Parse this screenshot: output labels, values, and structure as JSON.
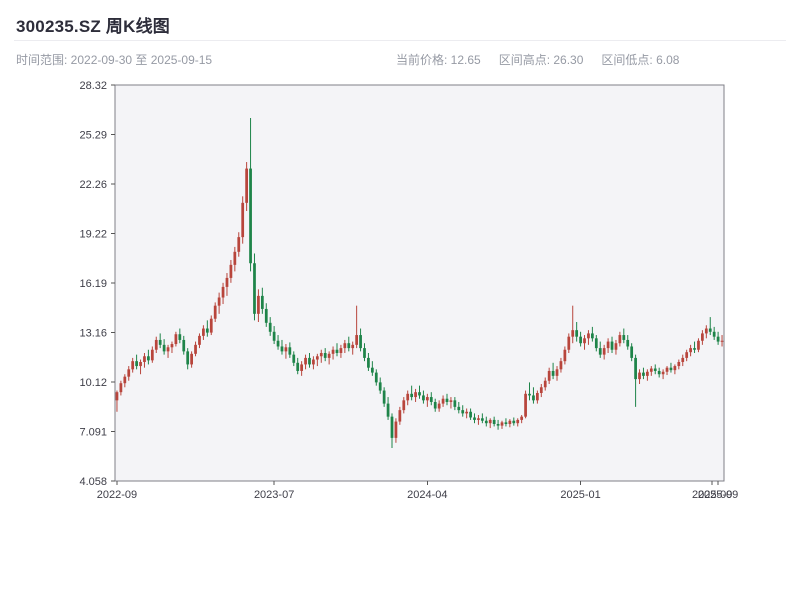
{
  "header": {
    "title": "300235.SZ 周K线图",
    "subtitle_left": "时间范围: 2022-09-30 至 2025-09-15",
    "stats": [
      {
        "text": "当前价格: 12.65"
      },
      {
        "text": "区间高点: 26.30"
      },
      {
        "text": "区间低点: 6.08"
      }
    ]
  },
  "chart_data": {
    "type": "candlestick",
    "title": "300235.SZ 周K线图",
    "symbol": "300235.SZ",
    "interval": "weekly",
    "date_range_start": "2022-09-30",
    "date_range_end": "2025-09-15",
    "current_price": 12.65,
    "range_high": 26.3,
    "range_low": 6.08,
    "ylim": [
      4.058,
      28.32
    ],
    "y_ticks": [
      "28.32",
      "25.29",
      "22.26",
      "19.22",
      "16.19",
      "13.16",
      "10.12",
      "7.091",
      "4.058"
    ],
    "x_ticks": [
      {
        "label": "2022-09",
        "index": 0
      },
      {
        "label": "2023-07",
        "index": 40
      },
      {
        "label": "2024-04",
        "index": 79
      },
      {
        "label": "2025-01",
        "index": 118
      },
      {
        "label": "2025-09",
        "index": 151.5
      },
      {
        "label": "2025-09",
        "index": 153
      }
    ],
    "up_color": "#b8453c",
    "down_color": "#1e8449",
    "plot_bg": "#f4f4f7",
    "border_color": "#7f7f87",
    "tick_color": "#555555",
    "label_color": "#3e3e48",
    "candles": [
      [
        9.0,
        9.6,
        8.3,
        9.5
      ],
      [
        9.5,
        10.2,
        9.3,
        10.05
      ],
      [
        10.05,
        10.6,
        9.8,
        10.45
      ],
      [
        10.45,
        11.1,
        10.2,
        10.9
      ],
      [
        10.9,
        11.6,
        10.7,
        11.4
      ],
      [
        11.4,
        11.8,
        10.9,
        11.1
      ],
      [
        11.1,
        11.5,
        10.6,
        11.35
      ],
      [
        11.35,
        11.9,
        11.0,
        11.7
      ],
      [
        11.7,
        12.1,
        11.2,
        11.45
      ],
      [
        11.45,
        12.3,
        11.3,
        12.1
      ],
      [
        12.1,
        12.9,
        11.9,
        12.7
      ],
      [
        12.7,
        13.1,
        12.2,
        12.4
      ],
      [
        12.4,
        12.75,
        11.8,
        12.0
      ],
      [
        12.0,
        12.4,
        11.6,
        12.25
      ],
      [
        12.25,
        12.6,
        11.9,
        12.45
      ],
      [
        12.45,
        13.2,
        12.3,
        13.05
      ],
      [
        13.05,
        13.4,
        12.5,
        12.7
      ],
      [
        12.7,
        12.95,
        11.8,
        12.0
      ],
      [
        12.0,
        12.2,
        10.9,
        11.2
      ],
      [
        11.2,
        12.0,
        11.0,
        11.85
      ],
      [
        11.85,
        12.6,
        11.7,
        12.4
      ],
      [
        12.4,
        13.1,
        12.2,
        12.95
      ],
      [
        12.95,
        13.6,
        12.7,
        13.4
      ],
      [
        13.4,
        13.9,
        12.9,
        13.15
      ],
      [
        13.15,
        14.2,
        13.0,
        14.0
      ],
      [
        14.0,
        15.0,
        13.8,
        14.8
      ],
      [
        14.8,
        15.6,
        14.3,
        15.3
      ],
      [
        15.3,
        16.2,
        14.9,
        15.95
      ],
      [
        15.95,
        16.8,
        15.4,
        16.5
      ],
      [
        16.5,
        17.6,
        16.2,
        17.3
      ],
      [
        17.3,
        18.4,
        16.9,
        18.1
      ],
      [
        18.1,
        19.3,
        17.8,
        19.0
      ],
      [
        19.0,
        21.5,
        18.6,
        21.1
      ],
      [
        21.1,
        23.6,
        20.6,
        23.2
      ],
      [
        23.2,
        26.3,
        16.9,
        17.4
      ],
      [
        17.4,
        18.0,
        13.9,
        14.3
      ],
      [
        14.3,
        15.8,
        13.8,
        15.4
      ],
      [
        15.4,
        15.9,
        14.3,
        14.6
      ],
      [
        14.6,
        14.95,
        13.5,
        13.75
      ],
      [
        13.75,
        14.1,
        12.95,
        13.2
      ],
      [
        13.2,
        13.55,
        12.45,
        12.65
      ],
      [
        12.65,
        13.0,
        12.1,
        12.3
      ],
      [
        12.3,
        12.7,
        11.8,
        12.0
      ],
      [
        12.0,
        12.45,
        11.55,
        12.25
      ],
      [
        12.25,
        12.55,
        11.6,
        11.8
      ],
      [
        11.8,
        12.0,
        11.1,
        11.3
      ],
      [
        11.3,
        11.6,
        10.6,
        10.8
      ],
      [
        10.8,
        11.4,
        10.5,
        11.2
      ],
      [
        11.2,
        11.8,
        10.9,
        11.6
      ],
      [
        11.6,
        11.9,
        11.0,
        11.2
      ],
      [
        11.2,
        11.7,
        10.9,
        11.5
      ],
      [
        11.5,
        11.85,
        11.1,
        11.7
      ],
      [
        11.7,
        12.1,
        11.3,
        11.9
      ],
      [
        11.9,
        12.2,
        11.4,
        11.6
      ],
      [
        11.6,
        12.0,
        11.2,
        11.85
      ],
      [
        11.85,
        12.3,
        11.5,
        12.1
      ],
      [
        12.1,
        12.5,
        11.7,
        11.9
      ],
      [
        11.9,
        12.4,
        11.6,
        12.2
      ],
      [
        12.2,
        12.7,
        11.9,
        12.5
      ],
      [
        12.5,
        12.9,
        12.0,
        12.2
      ],
      [
        12.2,
        12.6,
        11.8,
        12.4
      ],
      [
        12.4,
        14.8,
        12.2,
        13.0
      ],
      [
        13.0,
        13.4,
        12.0,
        12.2
      ],
      [
        12.2,
        12.5,
        11.4,
        11.6
      ],
      [
        11.6,
        11.9,
        10.8,
        11.0
      ],
      [
        11.0,
        11.4,
        10.5,
        10.7
      ],
      [
        10.7,
        10.9,
        9.9,
        10.1
      ],
      [
        10.1,
        10.4,
        9.4,
        9.6
      ],
      [
        9.6,
        9.8,
        8.6,
        8.8
      ],
      [
        8.8,
        9.2,
        7.8,
        8.0
      ],
      [
        8.0,
        8.2,
        6.08,
        6.7
      ],
      [
        6.7,
        7.9,
        6.4,
        7.7
      ],
      [
        7.7,
        8.6,
        7.5,
        8.4
      ],
      [
        8.4,
        9.2,
        8.2,
        9.0
      ],
      [
        9.0,
        9.6,
        8.7,
        9.4
      ],
      [
        9.4,
        9.9,
        9.0,
        9.2
      ],
      [
        9.2,
        9.7,
        8.9,
        9.5
      ],
      [
        9.5,
        9.9,
        9.1,
        9.3
      ],
      [
        9.3,
        9.6,
        8.8,
        9.0
      ],
      [
        9.0,
        9.4,
        8.6,
        9.2
      ],
      [
        9.2,
        9.5,
        8.7,
        8.9
      ],
      [
        8.9,
        9.1,
        8.3,
        8.5
      ],
      [
        8.5,
        9.0,
        8.3,
        8.8
      ],
      [
        8.8,
        9.3,
        8.6,
        9.1
      ],
      [
        9.1,
        9.4,
        8.7,
        8.9
      ],
      [
        8.9,
        9.2,
        8.5,
        9.0
      ],
      [
        9.0,
        9.2,
        8.4,
        8.6
      ],
      [
        8.6,
        8.9,
        8.2,
        8.4
      ],
      [
        8.4,
        8.7,
        8.0,
        8.2
      ],
      [
        8.2,
        8.5,
        7.9,
        8.3
      ],
      [
        8.3,
        8.5,
        7.8,
        7.95
      ],
      [
        7.95,
        8.2,
        7.6,
        7.8
      ],
      [
        7.8,
        8.1,
        7.5,
        7.9
      ],
      [
        7.9,
        8.2,
        7.6,
        7.75
      ],
      [
        7.75,
        8.0,
        7.4,
        7.6
      ],
      [
        7.6,
        7.9,
        7.3,
        7.8
      ],
      [
        7.8,
        8.0,
        7.4,
        7.55
      ],
      [
        7.55,
        7.8,
        7.2,
        7.45
      ],
      [
        7.45,
        7.75,
        7.25,
        7.65
      ],
      [
        7.65,
        7.9,
        7.4,
        7.55
      ],
      [
        7.55,
        7.85,
        7.35,
        7.75
      ],
      [
        7.75,
        7.95,
        7.45,
        7.6
      ],
      [
        7.6,
        7.9,
        7.4,
        7.8
      ],
      [
        7.8,
        8.1,
        7.6,
        8.0
      ],
      [
        8.0,
        9.6,
        7.9,
        9.4
      ],
      [
        9.4,
        10.1,
        9.0,
        9.3
      ],
      [
        9.3,
        9.8,
        8.8,
        9.0
      ],
      [
        9.0,
        9.6,
        8.8,
        9.45
      ],
      [
        9.45,
        10.0,
        9.2,
        9.8
      ],
      [
        9.8,
        10.4,
        9.6,
        10.2
      ],
      [
        10.2,
        11.0,
        10.0,
        10.8
      ],
      [
        10.8,
        11.3,
        10.3,
        10.5
      ],
      [
        10.5,
        11.1,
        10.2,
        10.9
      ],
      [
        10.9,
        11.6,
        10.7,
        11.4
      ],
      [
        11.4,
        12.3,
        11.2,
        12.1
      ],
      [
        12.1,
        13.1,
        11.9,
        12.9
      ],
      [
        12.9,
        14.8,
        12.5,
        13.3
      ],
      [
        13.3,
        13.8,
        12.6,
        12.9
      ],
      [
        12.9,
        13.2,
        12.3,
        12.5
      ],
      [
        12.5,
        13.0,
        12.1,
        12.8
      ],
      [
        12.8,
        13.3,
        12.4,
        13.1
      ],
      [
        13.1,
        13.5,
        12.6,
        12.8
      ],
      [
        12.8,
        13.0,
        12.0,
        12.2
      ],
      [
        12.2,
        12.6,
        11.6,
        11.8
      ],
      [
        11.8,
        12.4,
        11.5,
        12.2
      ],
      [
        12.2,
        12.8,
        11.9,
        12.6
      ],
      [
        12.6,
        12.9,
        11.9,
        12.1
      ],
      [
        12.1,
        12.7,
        11.8,
        12.5
      ],
      [
        12.5,
        13.2,
        12.3,
        13.0
      ],
      [
        13.0,
        13.4,
        12.5,
        12.7
      ],
      [
        12.7,
        13.0,
        12.1,
        12.3
      ],
      [
        12.3,
        12.5,
        11.4,
        11.6
      ],
      [
        11.6,
        11.8,
        8.6,
        10.3
      ],
      [
        10.3,
        10.9,
        10.0,
        10.7
      ],
      [
        10.7,
        11.0,
        10.3,
        10.5
      ],
      [
        10.5,
        10.9,
        10.2,
        10.75
      ],
      [
        10.75,
        11.1,
        10.5,
        10.95
      ],
      [
        10.95,
        11.2,
        10.6,
        10.8
      ],
      [
        10.8,
        11.0,
        10.4,
        10.6
      ],
      [
        10.6,
        10.9,
        10.3,
        10.75
      ],
      [
        10.75,
        11.1,
        10.55,
        11.0
      ],
      [
        11.0,
        11.3,
        10.7,
        10.85
      ],
      [
        10.85,
        11.2,
        10.6,
        11.1
      ],
      [
        11.1,
        11.5,
        10.9,
        11.35
      ],
      [
        11.35,
        11.8,
        11.1,
        11.6
      ],
      [
        11.6,
        12.1,
        11.4,
        11.95
      ],
      [
        11.95,
        12.4,
        11.7,
        12.2
      ],
      [
        12.2,
        12.6,
        11.9,
        12.1
      ],
      [
        12.1,
        12.8,
        11.95,
        12.65
      ],
      [
        12.65,
        13.3,
        12.4,
        13.1
      ],
      [
        13.1,
        13.6,
        12.8,
        13.4
      ],
      [
        13.4,
        14.1,
        13.0,
        13.2
      ],
      [
        13.2,
        13.5,
        12.7,
        12.9
      ],
      [
        12.9,
        13.2,
        12.4,
        12.6
      ],
      [
        12.6,
        13.0,
        12.3,
        12.65
      ]
    ]
  }
}
